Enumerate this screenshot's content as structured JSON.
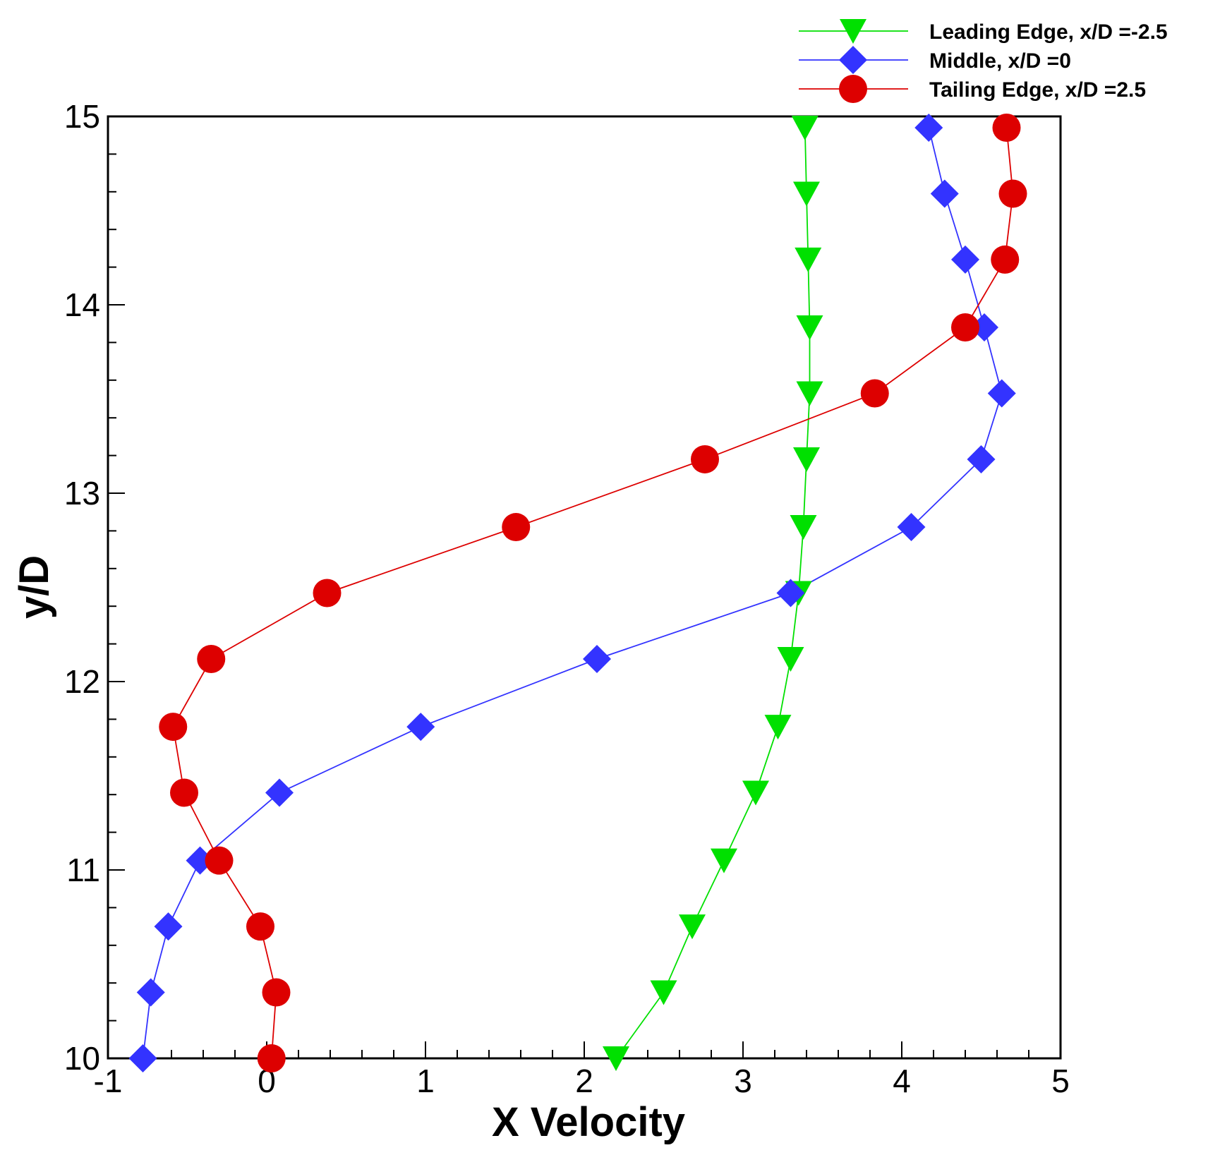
{
  "chart_data": {
    "type": "line",
    "title": "",
    "xlabel": "X Velocity",
    "ylabel": "y/D",
    "xlim": [
      -1,
      5
    ],
    "ylim": [
      10,
      15
    ],
    "xticks": [
      "-1",
      "0",
      "1",
      "2",
      "3",
      "4",
      "5"
    ],
    "yticks": [
      "10",
      "11",
      "12",
      "13",
      "14",
      "15"
    ],
    "legend_position": "top-right",
    "series": [
      {
        "name": "Leading Edge, x/D =-2.5",
        "color": "#00e000",
        "marker": "triangle-down",
        "points": [
          [
            2.2,
            10.0
          ],
          [
            2.5,
            10.35
          ],
          [
            2.68,
            10.7
          ],
          [
            2.88,
            11.05
          ],
          [
            3.08,
            11.41
          ],
          [
            3.22,
            11.76
          ],
          [
            3.3,
            12.12
          ],
          [
            3.35,
            12.47
          ],
          [
            3.38,
            12.82
          ],
          [
            3.4,
            13.18
          ],
          [
            3.42,
            13.53
          ],
          [
            3.42,
            13.88
          ],
          [
            3.41,
            14.24
          ],
          [
            3.4,
            14.59
          ],
          [
            3.39,
            14.94
          ]
        ]
      },
      {
        "name": "Middle, x/D =0",
        "color": "#3333ff",
        "marker": "diamond",
        "points": [
          [
            -0.78,
            10.0
          ],
          [
            -0.73,
            10.35
          ],
          [
            -0.62,
            10.7
          ],
          [
            -0.42,
            11.05
          ],
          [
            0.08,
            11.41
          ],
          [
            0.97,
            11.76
          ],
          [
            2.08,
            12.12
          ],
          [
            3.3,
            12.47
          ],
          [
            4.06,
            12.82
          ],
          [
            4.5,
            13.18
          ],
          [
            4.63,
            13.53
          ],
          [
            4.52,
            13.88
          ],
          [
            4.4,
            14.24
          ],
          [
            4.27,
            14.59
          ],
          [
            4.17,
            14.94
          ]
        ]
      },
      {
        "name": "Tailing Edge, x/D =2.5",
        "color": "#dd0000",
        "marker": "circle",
        "points": [
          [
            0.03,
            10.0
          ],
          [
            0.06,
            10.35
          ],
          [
            -0.04,
            10.7
          ],
          [
            -0.3,
            11.05
          ],
          [
            -0.52,
            11.41
          ],
          [
            -0.59,
            11.76
          ],
          [
            -0.35,
            12.12
          ],
          [
            0.38,
            12.47
          ],
          [
            1.57,
            12.82
          ],
          [
            2.76,
            13.18
          ],
          [
            3.83,
            13.53
          ],
          [
            4.4,
            13.88
          ],
          [
            4.65,
            14.24
          ],
          [
            4.7,
            14.59
          ],
          [
            4.66,
            14.94
          ]
        ]
      }
    ]
  }
}
